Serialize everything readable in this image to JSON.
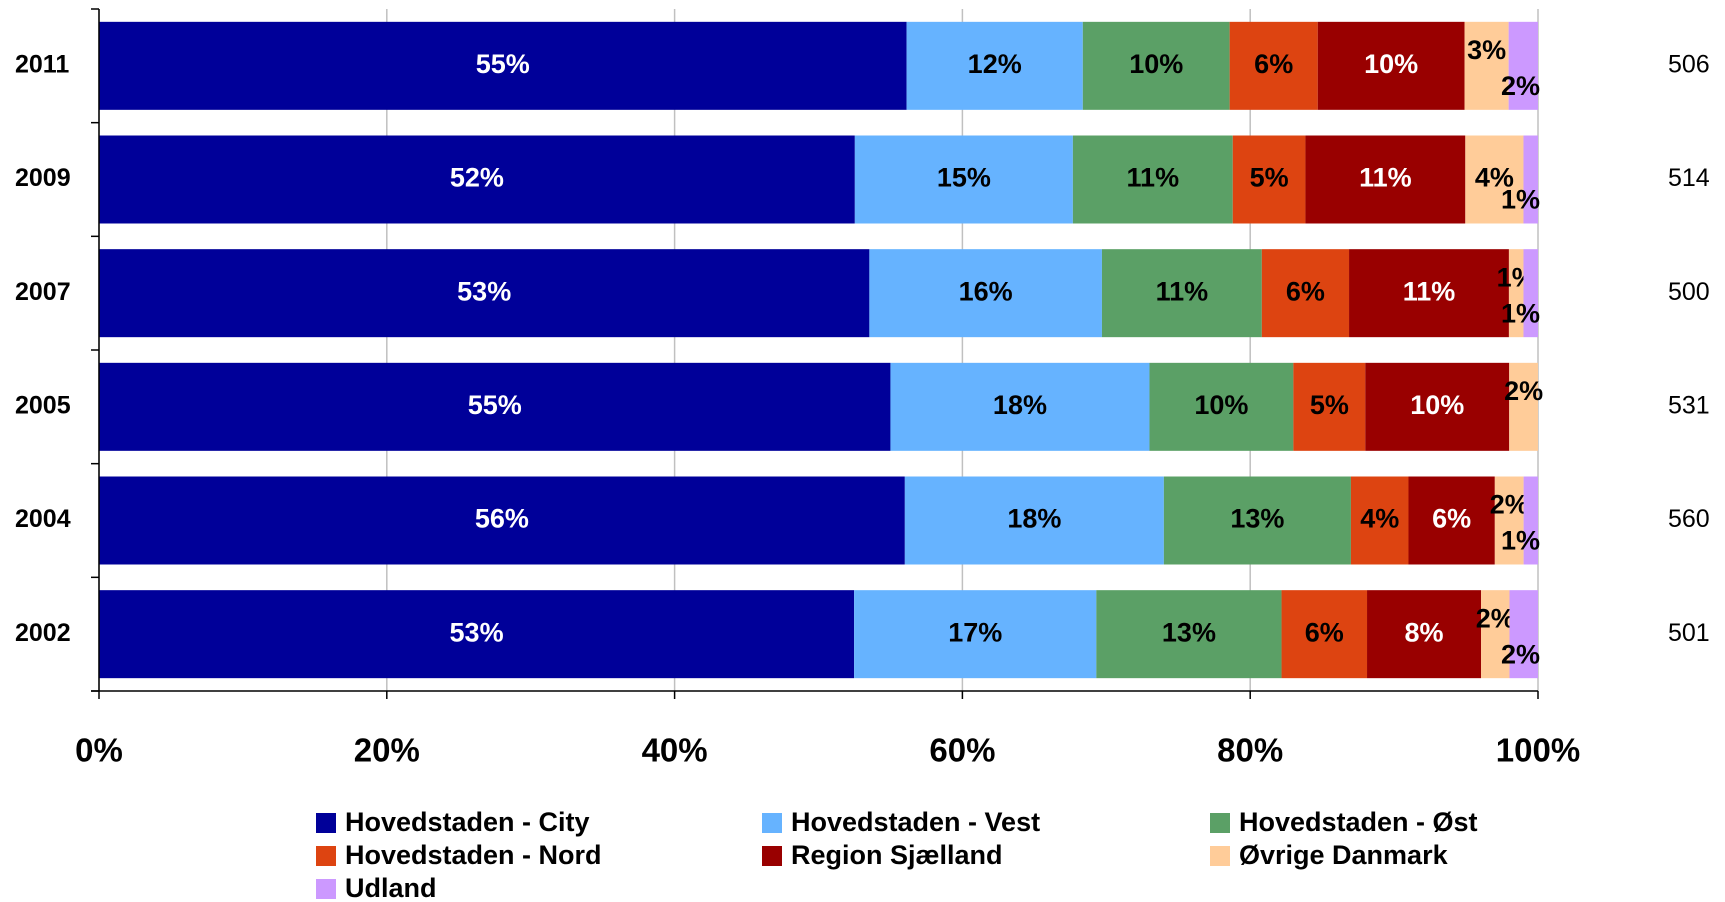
{
  "chart_data": {
    "type": "bar",
    "orientation": "horizontal",
    "stacked": "percent",
    "categories": [
      "2011",
      "2009",
      "2007",
      "2005",
      "2004",
      "2002"
    ],
    "totals": [
      "506",
      "514",
      "500",
      "531",
      "560",
      "501"
    ],
    "series": [
      {
        "name": "Hovedstaden - City",
        "color": "#000099",
        "label_color": "#ffffff",
        "values": [
          55,
          52,
          53,
          55,
          56,
          53
        ],
        "value_labels": [
          "55%",
          "52%",
          "53%",
          "55%",
          "56%",
          "53%"
        ]
      },
      {
        "name": "Hovedstaden - Vest",
        "color": "#66b3ff",
        "label_color": "#000000",
        "values": [
          12,
          15,
          16,
          18,
          18,
          17
        ],
        "value_labels": [
          "12%",
          "15%",
          "16%",
          "18%",
          "18%",
          "17%"
        ]
      },
      {
        "name": "Hovedstaden - Øst",
        "color": "#5ba066",
        "label_color": "#000000",
        "values": [
          10,
          11,
          11,
          10,
          13,
          13
        ],
        "value_labels": [
          "10%",
          "11%",
          "11%",
          "10%",
          "13%",
          "13%"
        ]
      },
      {
        "name": "Hovedstaden - Nord",
        "color": "#dd4411",
        "label_color": "#000000",
        "values": [
          6,
          5,
          6,
          5,
          4,
          6
        ],
        "value_labels": [
          "6%",
          "5%",
          "6%",
          "5%",
          "4%",
          "6%"
        ]
      },
      {
        "name": "Region Sjælland",
        "color": "#990000",
        "label_color": "#ffffff",
        "values": [
          10,
          11,
          11,
          10,
          6,
          8
        ],
        "value_labels": [
          "10%",
          "11%",
          "11%",
          "10%",
          "6%",
          "8%"
        ]
      },
      {
        "name": "Øvrige Danmark",
        "color": "#ffcc99",
        "label_color": "#000000",
        "values": [
          3,
          4,
          1,
          2,
          2,
          2
        ],
        "value_labels": [
          "3%",
          "4%",
          "1%",
          "2%",
          "2%",
          "2%"
        ]
      },
      {
        "name": "Udland",
        "color": "#cc99ff",
        "label_color": "#000000",
        "values": [
          2,
          1,
          1,
          0,
          1,
          2
        ],
        "value_labels": [
          "2%",
          "1%",
          "1%",
          null,
          "1%",
          "2%"
        ]
      }
    ],
    "xlim": [
      0,
      100
    ],
    "xticks": [
      {
        "value": 0,
        "label": "0%"
      },
      {
        "value": 20,
        "label": "20%"
      },
      {
        "value": 40,
        "label": "40%"
      },
      {
        "value": 60,
        "label": "60%"
      },
      {
        "value": 80,
        "label": "80%"
      },
      {
        "value": 100,
        "label": "100%"
      }
    ],
    "grid": true,
    "legend": "bottom"
  }
}
